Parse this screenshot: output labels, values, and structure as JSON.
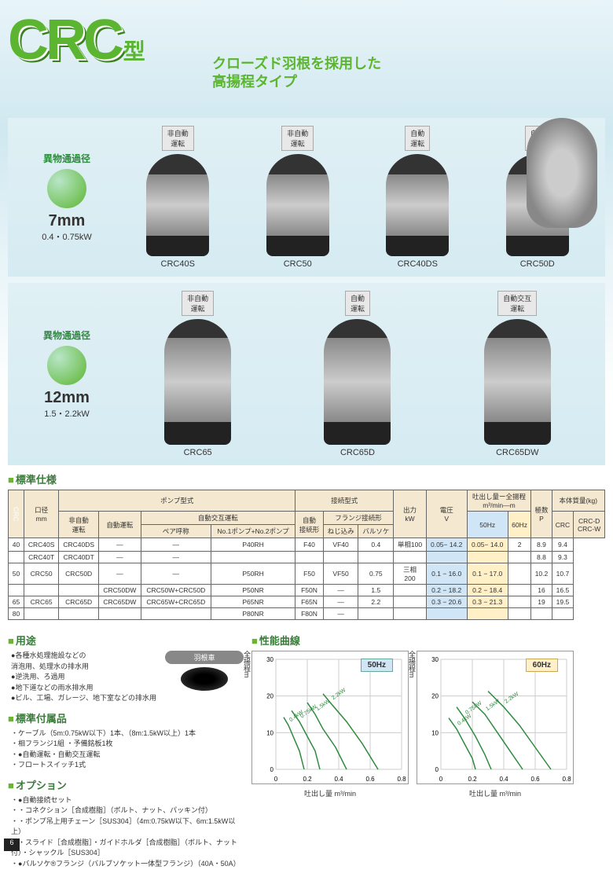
{
  "header": {
    "logo": "CRC",
    "type_suffix": "型",
    "subtitle_line1": "クローズド羽根を採用した",
    "subtitle_line2": "高揚程タイプ"
  },
  "section1": {
    "spec_title": "異物通過径",
    "spec_mm": "7mm",
    "spec_kw": "0.4・0.75kW",
    "products": [
      {
        "label": "非自動\n運転",
        "name": "CRC40S"
      },
      {
        "label": "非自動\n運転",
        "name": "CRC50"
      },
      {
        "label": "自動\n運転",
        "name": "CRC40DS"
      },
      {
        "label": "自動\n運転",
        "name": "CRC50D"
      }
    ]
  },
  "section2": {
    "spec_title": "異物通過径",
    "spec_mm": "12mm",
    "spec_kw": "1.5・2.2kW",
    "products": [
      {
        "label": "非自動\n運転",
        "name": "CRC65"
      },
      {
        "label": "自動\n運転",
        "name": "CRC65D"
      },
      {
        "label": "自動交互\n運転",
        "name": "CRC65DW"
      }
    ]
  },
  "spec_heading": "標準仕様",
  "table": {
    "rowlabel": "CRC",
    "headers": {
      "diameter": "口径\nmm",
      "pump_type": "ポンプ型式",
      "non_auto": "非自動\n運転",
      "auto": "自動運転",
      "auto_alt": "自動交互運転",
      "pair": "ペア呼称",
      "pump1": "No.1ポンプ+No.2ポンプ",
      "conn_type": "接続型式",
      "auto_conn": "自動\n接続形",
      "flange": "フランジ接続形",
      "screw": "ねじ込み",
      "valsoc": "バルソケ",
      "output": "出力\nkW",
      "voltage": "電圧\nV",
      "discharge": "吐出し量ー全揚程\nm³/min—m",
      "hz50": "50Hz",
      "hz60": "60Hz",
      "poles": "極数\nP",
      "mass": "本体質量(kg)",
      "mass_crc": "CRC",
      "mass_crcd": "CRC-D\nCRC-W"
    },
    "rows": [
      {
        "dia": "40",
        "na": "CRC40S",
        "au": "CRC40DS",
        "pair": "—",
        "p12": "—",
        "ac": "P40RH",
        "sc": "F40",
        "vs": "VF40",
        "kw": "0.4",
        "v": "単相100",
        "h50": "0.05− 14.2",
        "h60": "0.05− 14.0",
        "p": "2",
        "m1": "8.9",
        "m2": "9.4"
      },
      {
        "dia": "",
        "na": "CRC40T",
        "au": "CRC40DT",
        "pair": "—",
        "p12": "—",
        "ac": "",
        "sc": "",
        "vs": "",
        "kw": "",
        "v": "",
        "h50": "",
        "h60": "",
        "p": "",
        "m1": "8.8",
        "m2": "9.3"
      },
      {
        "dia": "50",
        "na": "CRC50",
        "au": "CRC50D",
        "pair": "—",
        "p12": "—",
        "ac": "P50RH",
        "sc": "F50",
        "vs": "VF50",
        "kw": "0.75",
        "v": "三相\n200",
        "h50": "0.1 − 16.0",
        "h60": "0.1 − 17.0",
        "p": "",
        "m1": "10.2",
        "m2": "10.7"
      },
      {
        "dia": "",
        "na": "",
        "au": "",
        "pair": "CRC50DW",
        "p12": "CRC50W+CRC50D",
        "ac": "P50NR",
        "sc": "F50N",
        "vs": "—",
        "kw": "1.5",
        "v": "",
        "h50": "0.2 − 18.2",
        "h60": "0.2 − 18.4",
        "p": "",
        "m1": "16",
        "m2": "16.5"
      },
      {
        "dia": "65",
        "na": "CRC65",
        "au": "CRC65D",
        "pair": "CRC65DW",
        "p12": "CRC65W+CRC65D",
        "ac": "P65NR",
        "sc": "F65N",
        "vs": "—",
        "kw": "2.2",
        "v": "",
        "h50": "0.3 − 20.6",
        "h60": "0.3 − 21.3",
        "p": "",
        "m1": "19",
        "m2": "19.5"
      },
      {
        "dia": "80",
        "na": "",
        "au": "",
        "pair": "",
        "p12": "",
        "ac": "P80NR",
        "sc": "F80N",
        "vs": "—",
        "kw": "",
        "v": "",
        "h50": "",
        "h60": "",
        "p": "",
        "m1": "",
        "m2": ""
      }
    ]
  },
  "usage": {
    "title": "用途",
    "impeller_label": "羽根車",
    "items": [
      "各種水処理施設などの\n消泡用、処理水の排水用",
      "逆洗用、ろ過用",
      "地下道などの雨水排水用",
      "ビル、工場、ガレージ、地下室などの排水用"
    ]
  },
  "accessories": {
    "title": "標準付属品",
    "items": [
      "ケーブル（5m:0.75kW以下）1本、（8m:1.5kW以上）1本",
      "相フランジ1組 ・予備銘板1枚",
      "●自動運転・自動交互運転",
      "フロートスイッチ1式"
    ]
  },
  "options": {
    "title": "オプション",
    "items": [
      "●自動接続セット",
      "・コネクション［合成樹脂］（ボルト、ナット、パッキン付）",
      "・ポンプ吊上用チェーン［SUS304］（4m:0.75kW以下、6m:1.5kW以上）",
      "・スライド［合成樹脂］・ガイドホルダ［合成樹脂］（ボルト、ナット付）・シャックル［SUS304］",
      "●バルソケ®フランジ（バルブソケット一体型フランジ）（40A・50A）"
    ]
  },
  "charts": {
    "title": "性能曲線",
    "ylabel": "全揚程m",
    "xlabel": "吐出し量 m³/min",
    "xmax": 0.8,
    "ymax": 30,
    "xticks": [
      0,
      0.2,
      0.4,
      0.6,
      0.8
    ],
    "yticks": [
      0,
      10,
      20,
      30
    ],
    "curve_color": "#2e8b3e",
    "grid_color": "#cccccc",
    "curves_labels": [
      "0.4kW",
      "0.75kW",
      "1.5kW",
      "2.2kW"
    ],
    "chart50": {
      "label": "50Hz",
      "curves": [
        {
          "pts": [
            [
              0.05,
              14.2
            ],
            [
              0.08,
              12
            ],
            [
              0.12,
              8
            ],
            [
              0.15,
              5
            ],
            [
              0.18,
              0
            ]
          ]
        },
        {
          "pts": [
            [
              0.1,
              16
            ],
            [
              0.15,
              13
            ],
            [
              0.2,
              9
            ],
            [
              0.25,
              5
            ],
            [
              0.28,
              0
            ]
          ]
        },
        {
          "pts": [
            [
              0.2,
              18.2
            ],
            [
              0.25,
              15
            ],
            [
              0.3,
              11
            ],
            [
              0.38,
              6
            ],
            [
              0.45,
              0
            ]
          ]
        },
        {
          "pts": [
            [
              0.3,
              20.6
            ],
            [
              0.35,
              18
            ],
            [
              0.45,
              13
            ],
            [
              0.55,
              7
            ],
            [
              0.65,
              0
            ]
          ]
        }
      ]
    },
    "chart60": {
      "label": "60Hz",
      "curves": [
        {
          "pts": [
            [
              0.05,
              14
            ],
            [
              0.1,
              11
            ],
            [
              0.15,
              7
            ],
            [
              0.2,
              3
            ],
            [
              0.22,
              0
            ]
          ]
        },
        {
          "pts": [
            [
              0.1,
              17
            ],
            [
              0.15,
              14
            ],
            [
              0.22,
              9
            ],
            [
              0.28,
              4
            ],
            [
              0.32,
              0
            ]
          ]
        },
        {
          "pts": [
            [
              0.2,
              18.4
            ],
            [
              0.28,
              15
            ],
            [
              0.36,
              10
            ],
            [
              0.44,
              5
            ],
            [
              0.52,
              0
            ]
          ]
        },
        {
          "pts": [
            [
              0.3,
              21.3
            ],
            [
              0.4,
              17
            ],
            [
              0.5,
              12
            ],
            [
              0.6,
              6
            ],
            [
              0.7,
              0
            ]
          ]
        }
      ]
    }
  },
  "page_number": "6"
}
